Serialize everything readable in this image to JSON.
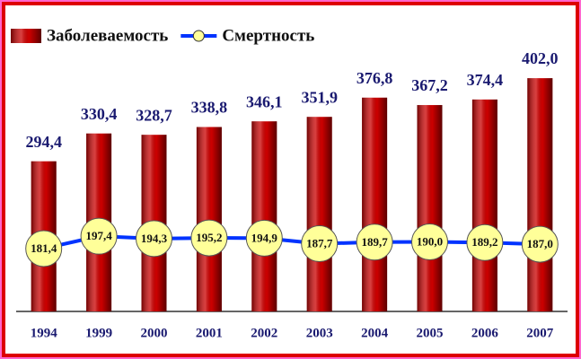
{
  "chart_data": {
    "type": "bar-line",
    "categories": [
      "1994",
      "1999",
      "2000",
      "2001",
      "2002",
      "2003",
      "2004",
      "2005",
      "2006",
      "2007"
    ],
    "series": [
      {
        "name": "Заболеваемость",
        "type": "bar",
        "color": "#cc0000",
        "values": [
          294.4,
          330.4,
          328.7,
          338.8,
          346.1,
          351.9,
          376.8,
          367.2,
          374.4,
          402.0
        ],
        "value_labels": [
          "294,4",
          "330,4",
          "328,7",
          "338,8",
          "346,1",
          "351,9",
          "376,8",
          "367,2",
          "374,4",
          "402,0"
        ]
      },
      {
        "name": "Смертность",
        "type": "line",
        "color": "#0033ff",
        "marker_color": "#ffff99",
        "values": [
          181.4,
          197.4,
          194.3,
          195.2,
          194.9,
          187.7,
          189.7,
          190.0,
          189.2,
          187.0
        ],
        "value_labels": [
          "181,4",
          "197,4",
          "194,3",
          "195,2",
          "194,9",
          "187,7",
          "189,7",
          "190,0",
          "189,2",
          "187,0"
        ]
      }
    ],
    "ylim": [
      100,
      480
    ],
    "legend": "top-left"
  }
}
